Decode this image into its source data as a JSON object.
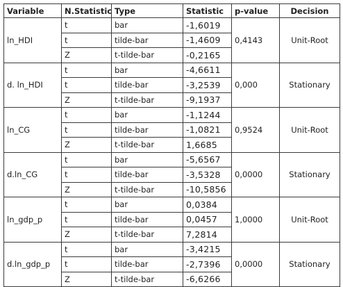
{
  "headers": {
    "variable": "Variable",
    "n_statistic": "N.Statistic",
    "type": "Type",
    "statistic": "Statistic",
    "p_value": "p-value",
    "decision": "Decision"
  },
  "groups": [
    {
      "variable": "ln_HDI",
      "p_value": "0,4143",
      "decision": "Unit-Root",
      "rows": [
        {
          "n": "t",
          "type": "bar",
          "statistic": "-1,6019"
        },
        {
          "n": "t",
          "type": "tilde-bar",
          "statistic": "-1,4609"
        },
        {
          "n": "Z",
          "type": "t-tilde-bar",
          "statistic": "-0,2165"
        }
      ]
    },
    {
      "variable": "d. ln_HDI",
      "p_value": "0,000",
      "decision": "Stationary",
      "rows": [
        {
          "n": "t",
          "type": "bar",
          "statistic": "-4,6611"
        },
        {
          "n": "t",
          "type": "tilde-bar",
          "statistic": "-3,2539"
        },
        {
          "n": "Z",
          "type": "t-tilde-bar",
          "statistic": "-9,1937"
        }
      ]
    },
    {
      "variable": "ln_CG",
      "p_value": "0,9524",
      "decision": "Unit-Root",
      "rows": [
        {
          "n": "t",
          "type": "bar",
          "statistic": "-1,1244"
        },
        {
          "n": "t",
          "type": "tilde-bar",
          "statistic": "-1,0821"
        },
        {
          "n": "Z",
          "type": "t-tilde-bar",
          "statistic": "1,6685"
        }
      ]
    },
    {
      "variable": "d.ln_CG",
      "p_value": "0,0000",
      "decision": "Stationary",
      "rows": [
        {
          "n": "t",
          "type": "bar",
          "statistic": "-5,6567"
        },
        {
          "n": "t",
          "type": "tilde-bar",
          "statistic": "-3,5328"
        },
        {
          "n": "Z",
          "type": "t-tilde-bar",
          "statistic": "-10,5856"
        }
      ]
    },
    {
      "variable": "ln_gdp_p",
      "p_value": "1,0000",
      "decision": "Unit-Root",
      "rows": [
        {
          "n": "t",
          "type": "bar",
          "statistic": "0,0384"
        },
        {
          "n": "t",
          "type": "tilde-bar",
          "statistic": "0,0457"
        },
        {
          "n": "Z",
          "type": "t-tilde-bar",
          "statistic": "7,2814"
        }
      ]
    },
    {
      "variable": "d.ln_gdp_p",
      "p_value": "0,0000",
      "decision": "Stationary",
      "rows": [
        {
          "n": "t",
          "type": "bar",
          "statistic": "-3,4215"
        },
        {
          "n": "t",
          "type": "tilde-bar",
          "statistic": "-2,7396"
        },
        {
          "n": "Z",
          "type": "t-tilde-bar",
          "statistic": "-6,6266"
        }
      ]
    }
  ]
}
